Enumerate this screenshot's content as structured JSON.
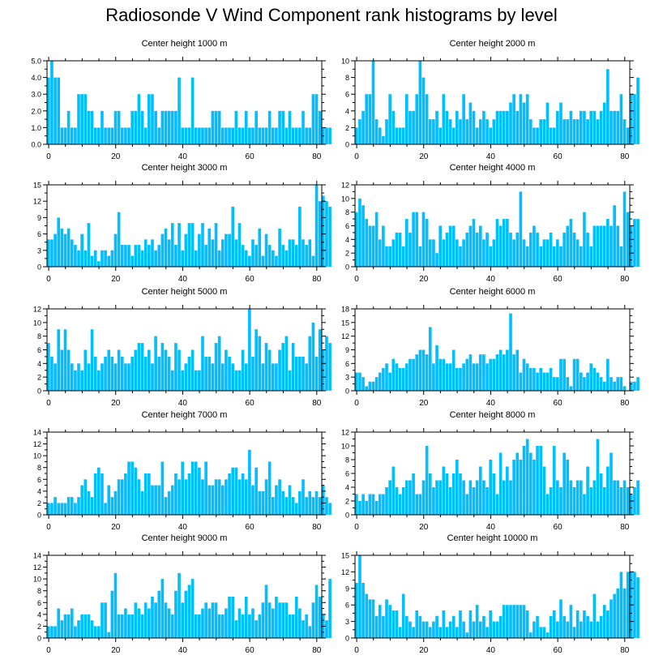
{
  "title": "Radiosonde V Wind Component rank histograms by level",
  "bar_color": "#00bfff",
  "chart_data": [
    {
      "type": "bar",
      "title": "Center height 1000 m",
      "xlim": [
        -0.5,
        81.5
      ],
      "ylim": [
        0,
        5
      ],
      "yticks": [
        0,
        1,
        2,
        3,
        4,
        5
      ],
      "ytick_labels": [
        "0.0",
        "1.0",
        "2.0",
        "3.0",
        "4.0",
        "5.0"
      ],
      "xticks": [
        0,
        20,
        40,
        60,
        80
      ],
      "values": [
        4,
        5,
        4,
        4,
        1,
        1,
        2,
        1,
        1,
        3,
        3,
        3,
        2,
        2,
        1,
        1,
        2,
        1,
        1,
        1,
        2,
        2,
        1,
        1,
        1,
        2,
        2,
        3,
        2,
        1,
        3,
        3,
        2,
        1,
        2,
        2,
        2,
        2,
        2,
        4,
        1,
        1,
        1,
        4,
        1,
        1,
        1,
        1,
        1,
        2,
        2,
        2,
        1,
        1,
        1,
        1,
        2,
        1,
        1,
        2,
        1,
        1,
        2,
        1,
        1,
        1,
        2,
        1,
        1,
        2,
        2,
        1,
        2,
        1,
        1,
        1,
        2,
        1,
        1,
        3,
        3,
        2,
        1,
        1,
        1
      ]
    },
    {
      "type": "bar",
      "title": "Center height 2000 m",
      "xlim": [
        -0.5,
        81.5
      ],
      "ylim": [
        0,
        10
      ],
      "yticks": [
        0,
        2,
        4,
        6,
        8,
        10
      ],
      "ytick_labels": [
        "0",
        "2",
        "4",
        "6",
        "8",
        "10"
      ],
      "xticks": [
        0,
        20,
        40,
        60,
        80
      ],
      "values": [
        2,
        3,
        4,
        6,
        6,
        10,
        3,
        2,
        1,
        3,
        6,
        4,
        2,
        2,
        2,
        6,
        4,
        4,
        6,
        10,
        8,
        6,
        3,
        3,
        4,
        2,
        6,
        4,
        3,
        2,
        4,
        3,
        6,
        3,
        5,
        4,
        2,
        3,
        4,
        3,
        2,
        3,
        4,
        4,
        4,
        4,
        5,
        6,
        4,
        6,
        5,
        6,
        3,
        2,
        2,
        3,
        3,
        5,
        2,
        2,
        4,
        5,
        3,
        3,
        4,
        3,
        3,
        4,
        4,
        3,
        4,
        4,
        3,
        4,
        5,
        9,
        4,
        4,
        4,
        6,
        3,
        2,
        6,
        6,
        8
      ]
    },
    {
      "type": "bar",
      "title": "Center height 3000 m",
      "xlim": [
        -0.5,
        81.5
      ],
      "ylim": [
        0,
        15
      ],
      "yticks": [
        0,
        3,
        6,
        9,
        12,
        15
      ],
      "ytick_labels": [
        "0",
        "3",
        "6",
        "9",
        "12",
        "15"
      ],
      "xticks": [
        0,
        20,
        40,
        60,
        80
      ],
      "values": [
        5,
        5,
        6,
        9,
        7,
        6,
        7,
        5,
        4,
        3,
        6,
        3,
        8,
        2,
        3,
        1,
        3,
        3,
        2,
        3,
        6,
        10,
        4,
        4,
        4,
        2,
        4,
        4,
        3,
        5,
        4,
        5,
        3,
        4,
        6,
        7,
        5,
        8,
        4,
        8,
        3,
        6,
        8,
        8,
        3,
        6,
        8,
        4,
        7,
        5,
        8,
        3,
        5,
        6,
        6,
        11,
        5,
        8,
        4,
        3,
        2,
        5,
        4,
        7,
        2,
        6,
        4,
        3,
        2,
        7,
        4,
        3,
        5,
        5,
        4,
        11,
        5,
        4,
        5,
        2,
        15,
        12,
        13,
        12,
        11
      ]
    },
    {
      "type": "bar",
      "title": "Center height 4000 m",
      "xlim": [
        -0.5,
        81.5
      ],
      "ylim": [
        0,
        12
      ],
      "yticks": [
        0,
        2,
        4,
        6,
        8,
        10,
        12
      ],
      "ytick_labels": [
        "0",
        "2",
        "4",
        "6",
        "8",
        "10",
        "12"
      ],
      "xticks": [
        0,
        20,
        40,
        60,
        80
      ],
      "values": [
        8,
        10,
        9,
        7,
        6,
        6,
        8,
        4,
        6,
        3,
        3,
        4,
        5,
        5,
        3,
        7,
        5,
        8,
        8,
        3,
        8,
        7,
        4,
        4,
        2,
        6,
        4,
        5,
        6,
        6,
        4,
        3,
        4,
        5,
        6,
        7,
        5,
        6,
        4,
        5,
        3,
        4,
        7,
        6,
        7,
        7,
        5,
        4,
        5,
        11,
        4,
        3,
        5,
        6,
        5,
        3,
        4,
        4,
        5,
        3,
        4,
        3,
        5,
        6,
        7,
        5,
        4,
        3,
        8,
        5,
        3,
        6,
        6,
        6,
        6,
        7,
        6,
        9,
        6,
        3,
        11,
        8,
        6,
        7,
        7
      ]
    },
    {
      "type": "bar",
      "title": "Center height 5000 m",
      "xlim": [
        -0.5,
        81.5
      ],
      "ylim": [
        0,
        12
      ],
      "yticks": [
        0,
        2,
        4,
        6,
        8,
        10,
        12
      ],
      "ytick_labels": [
        "0",
        "2",
        "4",
        "6",
        "8",
        "10",
        "12"
      ],
      "xticks": [
        0,
        20,
        40,
        60,
        80
      ],
      "values": [
        7,
        5,
        4,
        9,
        6,
        9,
        6,
        4,
        3,
        4,
        3,
        6,
        4,
        9,
        5,
        3,
        4,
        5,
        6,
        5,
        4,
        6,
        5,
        4,
        4,
        5,
        6,
        7,
        7,
        5,
        6,
        4,
        8,
        5,
        7,
        6,
        5,
        3,
        7,
        6,
        3,
        4,
        5,
        6,
        3,
        3,
        8,
        5,
        5,
        4,
        7,
        8,
        4,
        6,
        5,
        4,
        3,
        3,
        6,
        4,
        12,
        5,
        9,
        8,
        4,
        7,
        6,
        4,
        4,
        6,
        7,
        8,
        3,
        7,
        5,
        5,
        5,
        4,
        8,
        10,
        5,
        9,
        6,
        8,
        7
      ]
    },
    {
      "type": "bar",
      "title": "Center height 6000 m",
      "xlim": [
        -0.5,
        81.5
      ],
      "ylim": [
        0,
        18
      ],
      "yticks": [
        0,
        3,
        6,
        9,
        12,
        15,
        18
      ],
      "ytick_labels": [
        "0",
        "3",
        "6",
        "9",
        "12",
        "15",
        "18"
      ],
      "xticks": [
        0,
        20,
        40,
        60,
        80
      ],
      "values": [
        4,
        4,
        3,
        1,
        2,
        2,
        3,
        4,
        5,
        6,
        4,
        7,
        6,
        5,
        5,
        6,
        7,
        7,
        8,
        9,
        9,
        8,
        14,
        6,
        10,
        7,
        7,
        6,
        6,
        9,
        5,
        5,
        6,
        7,
        8,
        6,
        6,
        8,
        8,
        6,
        7,
        7,
        8,
        9,
        8,
        9,
        17,
        8,
        9,
        4,
        7,
        6,
        5,
        5,
        4,
        5,
        4,
        4,
        5,
        3,
        3,
        7,
        7,
        3,
        1,
        7,
        7,
        4,
        3,
        4,
        6,
        5,
        4,
        3,
        2,
        7,
        3,
        2,
        3,
        3,
        1,
        0,
        2,
        2,
        3
      ]
    },
    {
      "type": "bar",
      "title": "Center height 7000 m",
      "xlim": [
        -0.5,
        81.5
      ],
      "ylim": [
        0,
        14
      ],
      "yticks": [
        0,
        2,
        4,
        6,
        8,
        10,
        12,
        14
      ],
      "ytick_labels": [
        "0",
        "2",
        "4",
        "6",
        "8",
        "10",
        "12",
        "14"
      ],
      "xticks": [
        0,
        20,
        40,
        60,
        80
      ],
      "values": [
        2,
        2,
        3,
        2,
        2,
        2,
        3,
        3,
        2,
        3,
        5,
        6,
        4,
        3,
        7,
        8,
        7,
        2,
        5,
        3,
        4,
        6,
        6,
        7,
        9,
        9,
        8,
        6,
        4,
        7,
        7,
        5,
        5,
        5,
        9,
        3,
        4,
        5,
        7,
        6,
        9,
        6,
        7,
        9,
        9,
        8,
        6,
        9,
        5,
        5,
        6,
        6,
        5,
        6,
        7,
        8,
        8,
        6,
        7,
        6,
        11,
        5,
        8,
        4,
        4,
        6,
        9,
        3,
        5,
        6,
        4,
        3,
        5,
        3,
        2,
        4,
        6,
        3,
        4,
        3,
        4,
        3,
        5,
        3,
        2
      ]
    },
    {
      "type": "bar",
      "title": "Center height 8000 m",
      "xlim": [
        -0.5,
        81.5
      ],
      "ylim": [
        0,
        12
      ],
      "yticks": [
        0,
        2,
        4,
        6,
        8,
        10,
        12
      ],
      "ytick_labels": [
        "0",
        "2",
        "4",
        "6",
        "8",
        "10",
        "12"
      ],
      "xticks": [
        0,
        20,
        40,
        60,
        80
      ],
      "values": [
        3,
        2,
        3,
        2,
        3,
        3,
        2,
        3,
        3,
        4,
        5,
        7,
        4,
        3,
        4,
        5,
        5,
        6,
        3,
        3,
        5,
        10,
        6,
        4,
        5,
        5,
        7,
        6,
        4,
        6,
        8,
        6,
        5,
        3,
        5,
        4,
        5,
        7,
        5,
        4,
        8,
        6,
        3,
        9,
        5,
        7,
        5,
        8,
        9,
        8,
        10,
        11,
        9,
        8,
        10,
        10,
        7,
        3,
        4,
        10,
        5,
        4,
        9,
        8,
        5,
        4,
        5,
        5,
        3,
        7,
        4,
        5,
        11,
        6,
        4,
        7,
        9,
        5,
        5,
        4,
        5,
        4,
        3,
        4,
        5
      ]
    },
    {
      "type": "bar",
      "title": "Center height 9000 m",
      "xlim": [
        -0.5,
        81.5
      ],
      "ylim": [
        0,
        14
      ],
      "yticks": [
        0,
        2,
        4,
        6,
        8,
        10,
        12,
        14
      ],
      "ytick_labels": [
        "0",
        "2",
        "4",
        "6",
        "8",
        "10",
        "12",
        "14"
      ],
      "xticks": [
        0,
        20,
        40,
        60,
        80
      ],
      "values": [
        2,
        2,
        2,
        5,
        3,
        4,
        4,
        5,
        2,
        3,
        4,
        4,
        4,
        3,
        2,
        2,
        6,
        6,
        1,
        8,
        11,
        4,
        4,
        5,
        4,
        4,
        6,
        5,
        4,
        6,
        5,
        7,
        6,
        8,
        10,
        6,
        5,
        4,
        8,
        11,
        6,
        8,
        9,
        10,
        4,
        4,
        5,
        6,
        5,
        6,
        6,
        4,
        4,
        5,
        7,
        7,
        3,
        5,
        4,
        7,
        4,
        5,
        3,
        4,
        6,
        9,
        6,
        5,
        7,
        6,
        6,
        6,
        4,
        4,
        7,
        5,
        3,
        4,
        2,
        6,
        9,
        7,
        4,
        3,
        10
      ]
    },
    {
      "type": "bar",
      "title": "Center height 10000 m",
      "xlim": [
        -0.5,
        81.5
      ],
      "ylim": [
        0,
        15
      ],
      "yticks": [
        0,
        3,
        6,
        9,
        12,
        15
      ],
      "ytick_labels": [
        "0",
        "3",
        "6",
        "9",
        "12",
        "15"
      ],
      "xticks": [
        0,
        20,
        40,
        60,
        80
      ],
      "values": [
        10,
        15,
        10,
        8,
        7,
        7,
        4,
        6,
        4,
        7,
        6,
        5,
        5,
        2,
        8,
        4,
        3,
        2,
        5,
        4,
        3,
        3,
        2,
        3,
        4,
        2,
        5,
        2,
        3,
        4,
        2,
        5,
        3,
        1,
        5,
        3,
        6,
        3,
        4,
        2,
        5,
        3,
        3,
        4,
        6,
        6,
        6,
        6,
        6,
        6,
        6,
        5,
        1,
        3,
        4,
        2,
        2,
        1,
        4,
        5,
        3,
        7,
        4,
        3,
        6,
        2,
        5,
        3,
        5,
        4,
        3,
        8,
        3,
        4,
        6,
        5,
        7,
        8,
        9,
        12,
        9,
        12,
        12,
        12,
        11
      ]
    }
  ]
}
